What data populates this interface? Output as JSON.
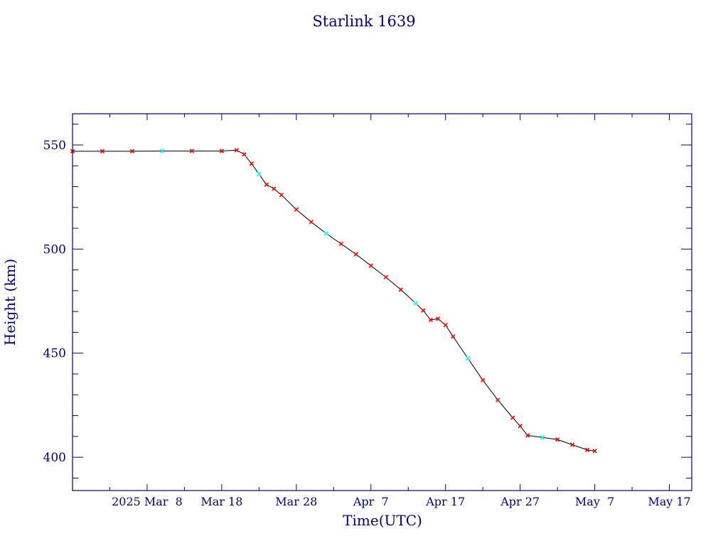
{
  "chart_data": {
    "type": "line",
    "title": "Starlink 1639",
    "xlabel": "Time(UTC)",
    "ylabel": "Height (km)",
    "x_unit": "date (UTC)",
    "xlim": [
      "2025-02-26",
      "2025-05-20"
    ],
    "ylim": [
      384,
      565
    ],
    "x_ticks": [
      {
        "date": "2025-03-08",
        "label": "2025 Mar  8"
      },
      {
        "date": "2025-03-18",
        "label": "Mar 18"
      },
      {
        "date": "2025-03-28",
        "label": "Mar 28"
      },
      {
        "date": "2025-04-07",
        "label": "Apr  7"
      },
      {
        "date": "2025-04-17",
        "label": "Apr 17"
      },
      {
        "date": "2025-04-27",
        "label": "Apr 27"
      },
      {
        "date": "2025-05-07",
        "label": "May  7"
      },
      {
        "date": "2025-05-17",
        "label": "May 17"
      }
    ],
    "y_ticks": [
      400,
      450,
      500,
      550
    ],
    "grid": false,
    "legend": "none",
    "colors": {
      "axes": "#000080",
      "line": "#000000",
      "marker": "#ff0000",
      "marker_alt": "#00ffff"
    },
    "series": [
      {
        "marker": "x",
        "points": [
          {
            "x": "2025-02-26",
            "y": 547.0
          },
          {
            "x": "2025-03-02",
            "y": 547.0
          },
          {
            "x": "2025-03-06",
            "y": 547.0
          },
          {
            "x": "2025-03-10",
            "y": 547.1
          },
          {
            "x": "2025-03-14",
            "y": 547.1
          },
          {
            "x": "2025-03-18",
            "y": 547.1
          },
          {
            "x": "2025-03-20",
            "y": 547.5
          },
          {
            "x": "2025-03-21",
            "y": 545.5
          },
          {
            "x": "2025-03-22",
            "y": 541.0
          },
          {
            "x": "2025-03-23",
            "y": 536.0
          },
          {
            "x": "2025-03-24",
            "y": 531.0
          },
          {
            "x": "2025-03-25",
            "y": 529.0
          },
          {
            "x": "2025-03-26",
            "y": 526.0
          },
          {
            "x": "2025-03-28",
            "y": 519.0
          },
          {
            "x": "2025-03-30",
            "y": 513.0
          },
          {
            "x": "2025-04-01",
            "y": 507.5
          },
          {
            "x": "2025-04-03",
            "y": 502.5
          },
          {
            "x": "2025-04-05",
            "y": 497.5
          },
          {
            "x": "2025-04-07",
            "y": 492.0
          },
          {
            "x": "2025-04-09",
            "y": 486.5
          },
          {
            "x": "2025-04-11",
            "y": 480.5
          },
          {
            "x": "2025-04-13",
            "y": 474.0
          },
          {
            "x": "2025-04-14",
            "y": 470.5
          },
          {
            "x": "2025-04-15",
            "y": 466.0
          },
          {
            "x": "2025-04-16",
            "y": 466.5
          },
          {
            "x": "2025-04-17",
            "y": 463.5
          },
          {
            "x": "2025-04-18",
            "y": 458.0
          },
          {
            "x": "2025-04-20",
            "y": 447.5
          },
          {
            "x": "2025-04-22",
            "y": 437.0
          },
          {
            "x": "2025-04-24",
            "y": 427.5
          },
          {
            "x": "2025-04-26",
            "y": 419.0
          },
          {
            "x": "2025-04-27",
            "y": 415.0
          },
          {
            "x": "2025-04-28",
            "y": 410.5
          },
          {
            "x": "2025-04-30",
            "y": 409.5
          },
          {
            "x": "2025-05-02",
            "y": 408.5
          },
          {
            "x": "2025-05-04",
            "y": 406.0
          },
          {
            "x": "2025-05-06",
            "y": 403.5
          },
          {
            "x": "2025-05-07",
            "y": 403.0
          }
        ]
      }
    ]
  }
}
